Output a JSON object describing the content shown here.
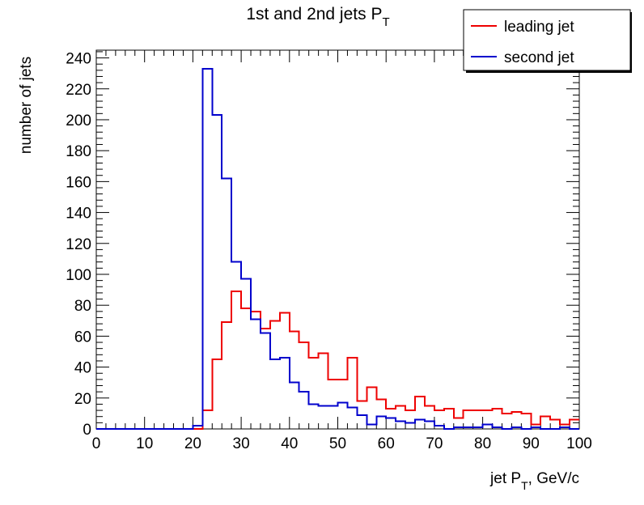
{
  "chart_data": {
    "type": "line",
    "title": "1st and 2nd jets P",
    "title_subscript": "T",
    "xlabel": "jet P",
    "xlabel_subscript": "T",
    "xlabel_suffix": ", GeV/c",
    "ylabel": "number of jets",
    "xlim": [
      0,
      100
    ],
    "ylim": [
      0,
      245
    ],
    "x_ticks": [
      0,
      10,
      20,
      30,
      40,
      50,
      60,
      70,
      80,
      90,
      100
    ],
    "y_ticks": [
      0,
      20,
      40,
      60,
      80,
      100,
      120,
      140,
      160,
      180,
      200,
      220,
      240
    ],
    "grid": false,
    "legend_position": "top-right",
    "bin_width": 2,
    "bins_start": 0,
    "series": [
      {
        "name": "leading jet",
        "color": "#ee0000",
        "values": [
          0,
          0,
          0,
          0,
          0,
          0,
          0,
          0,
          0,
          0,
          0,
          12,
          45,
          69,
          89,
          78,
          76,
          65,
          70,
          75,
          63,
          56,
          46,
          49,
          32,
          32,
          46,
          18,
          27,
          19,
          13,
          15,
          12,
          21,
          15,
          12,
          13,
          7,
          12,
          12,
          12,
          13,
          10,
          11,
          10,
          3,
          8,
          6,
          3,
          6
        ]
      },
      {
        "name": "second jet",
        "color": "#0000cc",
        "values": [
          0,
          0,
          0,
          0,
          0,
          0,
          0,
          0,
          0,
          0,
          2,
          233,
          203,
          162,
          108,
          97,
          71,
          62,
          45,
          46,
          30,
          24,
          16,
          15,
          15,
          17,
          14,
          9,
          3,
          8,
          7,
          5,
          4,
          6,
          5,
          2,
          0,
          1,
          1,
          1,
          3,
          1,
          0,
          1,
          0,
          1,
          0,
          0,
          1,
          0
        ]
      }
    ]
  }
}
